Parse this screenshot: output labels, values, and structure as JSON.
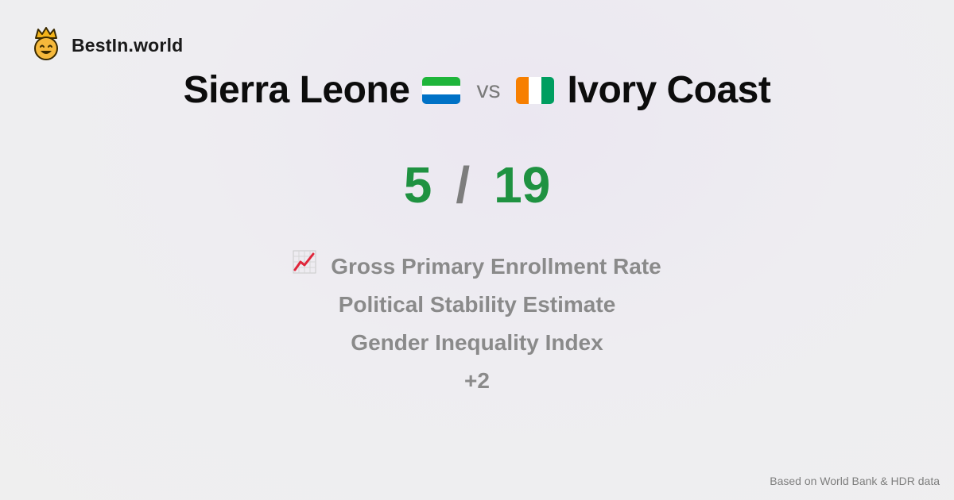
{
  "brand": {
    "name": "BestIn.world",
    "logo_icon": "crowned-smiley-icon"
  },
  "comparison": {
    "left_country": "Sierra Leone",
    "left_flag": {
      "icon": "sierra-leone-flag-icon",
      "colors": [
        "#1EB53A",
        "#FFFFFF",
        "#0072C6"
      ]
    },
    "vs_label": "vs",
    "right_country": "Ivory Coast",
    "right_flag": {
      "icon": "ivory-coast-flag-icon",
      "colors": [
        "#F77F00",
        "#FFFFFF",
        "#009E60"
      ]
    }
  },
  "score": {
    "left": "5",
    "separator": "/",
    "right": "19",
    "color": "#1f9241"
  },
  "metrics": {
    "first_icon": "chart-increasing-icon",
    "items": [
      "Gross Primary Enrollment Rate",
      "Political Stability Estimate",
      "Gender Inequality Index",
      "+2"
    ]
  },
  "footer": {
    "source": "Based on World Bank & HDR data"
  }
}
